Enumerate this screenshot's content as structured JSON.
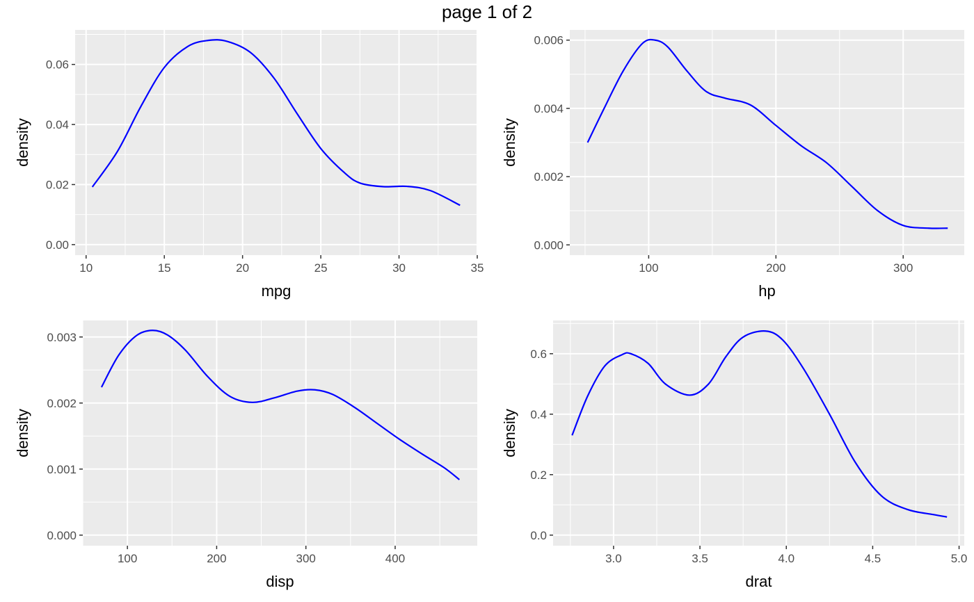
{
  "page_title": "page 1 of 2",
  "colors": {
    "panel_bg": "#EBEBEB",
    "grid": "#FFFFFF",
    "line": "#0000FF",
    "tick_text": "#4D4D4D"
  },
  "chart_data": [
    {
      "type": "line",
      "xlabel": "mpg",
      "ylabel": "density",
      "xlim": [
        9.3,
        35.0
      ],
      "ylim": [
        -0.0035,
        0.0715
      ],
      "x_ticks": [
        10,
        15,
        20,
        25,
        30,
        35
      ],
      "y_ticks": [
        0.0,
        0.02,
        0.04,
        0.06
      ],
      "x_tick_labels": [
        "10",
        "15",
        "20",
        "25",
        "30",
        "35"
      ],
      "y_tick_labels": [
        "0.00",
        "0.02",
        "0.04",
        "0.06"
      ],
      "series": [
        {
          "x": [
            10.4,
            12,
            13.5,
            15,
            16.5,
            17.8,
            19,
            20.5,
            22,
            23.5,
            25,
            26.5,
            27.5,
            29,
            30.5,
            32,
            33.9
          ],
          "y": [
            0.0192,
            0.031,
            0.046,
            0.059,
            0.066,
            0.068,
            0.0677,
            0.064,
            0.0555,
            0.0435,
            0.032,
            0.024,
            0.0205,
            0.0193,
            0.0194,
            0.018,
            0.0131
          ]
        }
      ]
    },
    {
      "type": "line",
      "xlabel": "hp",
      "ylabel": "density",
      "xlim": [
        38,
        348
      ],
      "ylim": [
        -0.0003,
        0.0063
      ],
      "x_ticks": [
        100,
        200,
        300
      ],
      "y_ticks": [
        0.0,
        0.002,
        0.004,
        0.006
      ],
      "x_tick_labels": [
        "100",
        "200",
        "300"
      ],
      "y_tick_labels": [
        "0.000",
        "0.002",
        "0.004",
        "0.006"
      ],
      "series": [
        {
          "x": [
            52,
            65,
            80,
            95,
            105,
            115,
            130,
            145,
            160,
            180,
            200,
            220,
            240,
            260,
            280,
            300,
            320,
            335
          ],
          "y": [
            0.003,
            0.004,
            0.0051,
            0.0059,
            0.006,
            0.0058,
            0.0051,
            0.0045,
            0.0043,
            0.0041,
            0.0035,
            0.0029,
            0.0024,
            0.0017,
            0.001,
            0.00057,
            0.00049,
            0.00049
          ]
        }
      ]
    },
    {
      "type": "line",
      "xlabel": "disp",
      "ylabel": "density",
      "xlim": [
        50,
        492
      ],
      "ylim": [
        -0.00016,
        0.00325
      ],
      "x_ticks": [
        100,
        200,
        300,
        400
      ],
      "y_ticks": [
        0.0,
        0.001,
        0.002,
        0.003
      ],
      "x_tick_labels": [
        "100",
        "200",
        "300",
        "400"
      ],
      "y_tick_labels": [
        "0.000",
        "0.001",
        "0.002",
        "0.003"
      ],
      "series": [
        {
          "x": [
            71,
            90,
            110,
            128,
            145,
            165,
            190,
            215,
            240,
            265,
            290,
            310,
            330,
            355,
            380,
            405,
            430,
            455,
            472
          ],
          "y": [
            0.00224,
            0.00272,
            0.00302,
            0.0031,
            0.00303,
            0.0028,
            0.0024,
            0.0021,
            0.00201,
            0.00208,
            0.00218,
            0.0022,
            0.00213,
            0.00193,
            0.00169,
            0.00145,
            0.00123,
            0.00102,
            0.00084
          ]
        }
      ]
    },
    {
      "type": "line",
      "xlabel": "drat",
      "ylabel": "density",
      "xlim": [
        2.65,
        5.03
      ],
      "ylim": [
        -0.035,
        0.71
      ],
      "x_ticks": [
        3.0,
        3.5,
        4.0,
        4.5,
        5.0
      ],
      "y_ticks": [
        0.0,
        0.2,
        0.4,
        0.6
      ],
      "x_tick_labels": [
        "3.0",
        "3.5",
        "4.0",
        "4.5",
        "5.0"
      ],
      "y_tick_labels": [
        "0.0",
        "0.2",
        "0.4",
        "0.6"
      ],
      "series": [
        {
          "x": [
            2.76,
            2.85,
            2.95,
            3.05,
            3.1,
            3.2,
            3.3,
            3.44,
            3.55,
            3.65,
            3.75,
            3.88,
            3.98,
            4.1,
            4.25,
            4.4,
            4.55,
            4.7,
            4.85,
            4.93
          ],
          "y": [
            0.33,
            0.46,
            0.56,
            0.597,
            0.6,
            0.568,
            0.5,
            0.463,
            0.5,
            0.59,
            0.655,
            0.675,
            0.645,
            0.55,
            0.4,
            0.24,
            0.13,
            0.085,
            0.068,
            0.06
          ]
        }
      ]
    }
  ]
}
